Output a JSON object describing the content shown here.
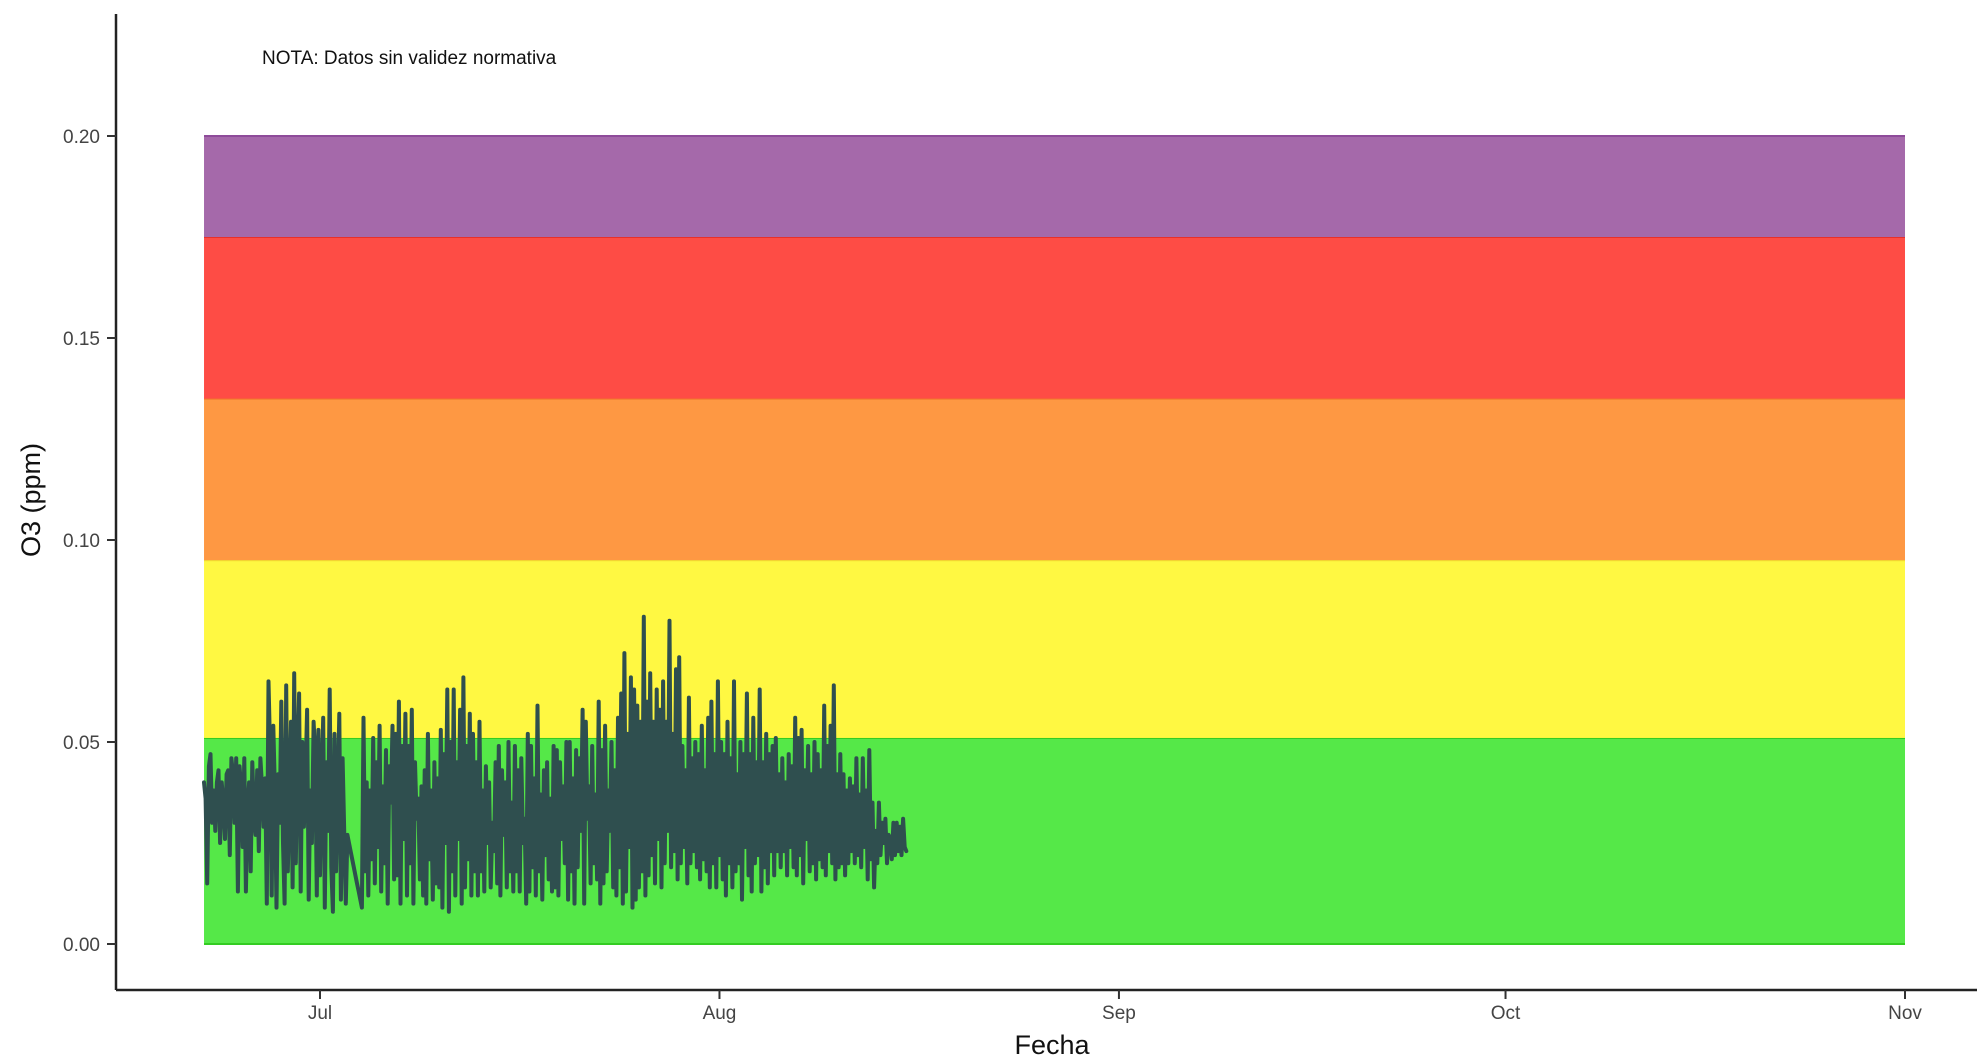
{
  "chart_data": {
    "type": "line",
    "note": "NOTA: Datos sin validez normativa",
    "xlabel": "Fecha",
    "ylabel": "O3 (ppm)",
    "ylim": [
      -0.011,
      0.23
    ],
    "xlim": [
      "2025-06-20",
      "2025-11-01"
    ],
    "y_ticks": [
      {
        "value": 0.0,
        "label": "0.00"
      },
      {
        "value": 0.05,
        "label": "0.05"
      },
      {
        "value": 0.1,
        "label": "0.10"
      },
      {
        "value": 0.15,
        "label": "0.15"
      },
      {
        "value": 0.2,
        "label": "0.20"
      }
    ],
    "x_ticks": [
      {
        "value": "2025-07-01",
        "label": "Jul"
      },
      {
        "value": "2025-08-01",
        "label": "Aug"
      },
      {
        "value": "2025-09-01",
        "label": "Sep"
      },
      {
        "value": "2025-10-01",
        "label": "Oct"
      },
      {
        "value": "2025-11-01",
        "label": "Nov"
      }
    ],
    "grid": false,
    "bands": [
      {
        "from": 0.0,
        "to": 0.051,
        "color": "#55e848",
        "edge": "#33cc22"
      },
      {
        "from": 0.051,
        "to": 0.095,
        "color": "#fff842",
        "edge": "#f2e230"
      },
      {
        "from": 0.095,
        "to": 0.135,
        "color": "#fe9843",
        "edge": "#f07a2a"
      },
      {
        "from": 0.135,
        "to": 0.175,
        "color": "#fe4c45",
        "edge": "#e8302a"
      },
      {
        "from": 0.175,
        "to": 0.2,
        "color": "#a569aa",
        "edge": "#8e4b9a"
      }
    ],
    "band_x_range": [
      "2025-06-22",
      "2025-11-01"
    ],
    "line_color": "#2f4f4f",
    "series": [
      {
        "x_start": "2025-06-22",
        "interval_hours": 3,
        "values": [
          0.04,
          0.036,
          0.015,
          0.044,
          0.047,
          0.03,
          0.038,
          0.028,
          0.04,
          0.043,
          0.025,
          0.04,
          0.035,
          0.026,
          0.042,
          0.043,
          0.022,
          0.046,
          0.042,
          0.03,
          0.046,
          0.013,
          0.044,
          0.039,
          0.024,
          0.046,
          0.013,
          0.034,
          0.04,
          0.018,
          0.045,
          0.031,
          0.027,
          0.043,
          0.023,
          0.046,
          0.039,
          0.029,
          0.041,
          0.01,
          0.065,
          0.048,
          0.012,
          0.054,
          0.038,
          0.009,
          0.042,
          0.03,
          0.06,
          0.025,
          0.01,
          0.064,
          0.018,
          0.035,
          0.055,
          0.014,
          0.067,
          0.02,
          0.045,
          0.062,
          0.013,
          0.05,
          0.029,
          0.041,
          0.058,
          0.011,
          0.038,
          0.025,
          0.055,
          0.047,
          0.012,
          0.053,
          0.017,
          0.04,
          0.056,
          0.009,
          0.045,
          0.028,
          0.063,
          0.019,
          0.008,
          0.052,
          0.018,
          0.037,
          0.057,
          0.011,
          0.046,
          0.028,
          0.01,
          0.027,
          0.025,
          0.023,
          0.021,
          0.019,
          0.017,
          0.015,
          0.013,
          0.011,
          0.009,
          0.056,
          0.018,
          0.04,
          0.012,
          0.038,
          0.021,
          0.051,
          0.015,
          0.045,
          0.024,
          0.054,
          0.013,
          0.039,
          0.02,
          0.048,
          0.01,
          0.044,
          0.035,
          0.054,
          0.016,
          0.052,
          0.017,
          0.06,
          0.01,
          0.049,
          0.026,
          0.057,
          0.012,
          0.049,
          0.02,
          0.058,
          0.01,
          0.045,
          0.031,
          0.036,
          0.016,
          0.039,
          0.012,
          0.043,
          0.01,
          0.052,
          0.021,
          0.038,
          0.011,
          0.045,
          0.015,
          0.041,
          0.014,
          0.053,
          0.009,
          0.047,
          0.025,
          0.063,
          0.008,
          0.05,
          0.018,
          0.063,
          0.012,
          0.045,
          0.026,
          0.058,
          0.01,
          0.066,
          0.014,
          0.049,
          0.021,
          0.057,
          0.012,
          0.052,
          0.018,
          0.045,
          0.012,
          0.055,
          0.018,
          0.038,
          0.013,
          0.044,
          0.025,
          0.04,
          0.014,
          0.03,
          0.023,
          0.045,
          0.015,
          0.049,
          0.012,
          0.043,
          0.027,
          0.04,
          0.014,
          0.05,
          0.018,
          0.035,
          0.013,
          0.049,
          0.018,
          0.043,
          0.013,
          0.046,
          0.025,
          0.031,
          0.01,
          0.052,
          0.013,
          0.049,
          0.019,
          0.041,
          0.012,
          0.059,
          0.018,
          0.037,
          0.011,
          0.043,
          0.022,
          0.045,
          0.016,
          0.036,
          0.013,
          0.049,
          0.014,
          0.048,
          0.012,
          0.045,
          0.026,
          0.039,
          0.02,
          0.05,
          0.011,
          0.05,
          0.018,
          0.041,
          0.01,
          0.048,
          0.019,
          0.046,
          0.028,
          0.058,
          0.01,
          0.055,
          0.031,
          0.039,
          0.015,
          0.049,
          0.02,
          0.037,
          0.016,
          0.06,
          0.01,
          0.048,
          0.015,
          0.054,
          0.018,
          0.038,
          0.028,
          0.05,
          0.014,
          0.043,
          0.012,
          0.056,
          0.019,
          0.062,
          0.01,
          0.072,
          0.013,
          0.052,
          0.024,
          0.066,
          0.009,
          0.063,
          0.011,
          0.059,
          0.014,
          0.055,
          0.018,
          0.081,
          0.012,
          0.06,
          0.017,
          0.067,
          0.022,
          0.055,
          0.015,
          0.063,
          0.026,
          0.058,
          0.014,
          0.065,
          0.02,
          0.055,
          0.028,
          0.08,
          0.019,
          0.052,
          0.023,
          0.068,
          0.016,
          0.071,
          0.02,
          0.049,
          0.024,
          0.043,
          0.015,
          0.061,
          0.02,
          0.046,
          0.023,
          0.05,
          0.019,
          0.047,
          0.016,
          0.054,
          0.021,
          0.043,
          0.018,
          0.056,
          0.014,
          0.06,
          0.02,
          0.047,
          0.014,
          0.065,
          0.022,
          0.05,
          0.016,
          0.047,
          0.012,
          0.055,
          0.02,
          0.046,
          0.014,
          0.065,
          0.018,
          0.042,
          0.02,
          0.05,
          0.011,
          0.047,
          0.024,
          0.062,
          0.017,
          0.047,
          0.013,
          0.056,
          0.02,
          0.045,
          0.022,
          0.063,
          0.013,
          0.045,
          0.019,
          0.052,
          0.015,
          0.047,
          0.023,
          0.049,
          0.017,
          0.051,
          0.023,
          0.042,
          0.019,
          0.046,
          0.023,
          0.04,
          0.017,
          0.047,
          0.024,
          0.044,
          0.019,
          0.056,
          0.017,
          0.051,
          0.022,
          0.053,
          0.015,
          0.043,
          0.026,
          0.049,
          0.018,
          0.042,
          0.02,
          0.05,
          0.016,
          0.047,
          0.021,
          0.043,
          0.019,
          0.059,
          0.017,
          0.049,
          0.023,
          0.054,
          0.02,
          0.064,
          0.016,
          0.042,
          0.019,
          0.047,
          0.02,
          0.042,
          0.017,
          0.038,
          0.02,
          0.041,
          0.023,
          0.039,
          0.02,
          0.046,
          0.022,
          0.037,
          0.019,
          0.046,
          0.024,
          0.038,
          0.016,
          0.048,
          0.021,
          0.035,
          0.014,
          0.028,
          0.02,
          0.035,
          0.022,
          0.03,
          0.025,
          0.031,
          0.02,
          0.027,
          0.026,
          0.021,
          0.03,
          0.022,
          0.03,
          0.023,
          0.029,
          0.022,
          0.031,
          0.024,
          0.023
        ]
      }
    ]
  }
}
